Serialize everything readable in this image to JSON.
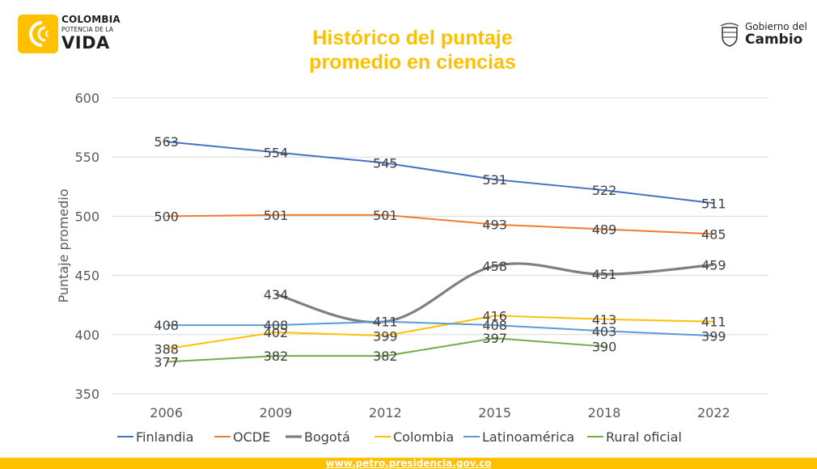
{
  "header": {
    "logo_left": {
      "line1": "COLOMBIA",
      "line2": "POTENCIA DE LA",
      "line3": "VIDA"
    },
    "logo_right": {
      "line1": "Gobierno del",
      "line2": "Cambio"
    }
  },
  "footer": {
    "url": "www.petro.presidencia.gov.co"
  },
  "colors": {
    "title": "#FFC000",
    "footer_bar": "#FFC000"
  },
  "chart_data": {
    "type": "line",
    "title": "Histórico del puntaje promedio en ciencias",
    "title_lines": [
      "Histórico del puntaje",
      "promedio en ciencias"
    ],
    "xlabel": "",
    "ylabel": "Puntaje promedio",
    "categories": [
      "2006",
      "2009",
      "2012",
      "2015",
      "2018",
      "2022"
    ],
    "ylim": [
      350,
      600
    ],
    "yticks": [
      350,
      400,
      450,
      500,
      550,
      600
    ],
    "grid": "horizontal",
    "legend": "bottom",
    "series": [
      {
        "name": "Finlandia",
        "color": "#4472C4",
        "values": [
          563,
          554,
          545,
          531,
          522,
          511
        ],
        "labels": [
          "563",
          "554",
          "545",
          "531",
          "522",
          "511"
        ],
        "smooth": false,
        "thick": false
      },
      {
        "name": "OCDE",
        "color": "#ED7D31",
        "values": [
          500,
          501,
          501,
          493,
          489,
          485
        ],
        "labels": [
          "500",
          "501",
          "501",
          "493",
          "489",
          "485"
        ],
        "smooth": false,
        "thick": false
      },
      {
        "name": "Bogotá",
        "color": "#7F7F7F",
        "values": [
          null,
          434,
          411,
          458,
          451,
          459
        ],
        "labels": [
          "",
          "434",
          "411",
          "458",
          "451",
          "459"
        ],
        "smooth": true,
        "thick": true
      },
      {
        "name": "Colombia",
        "color": "#FFC000",
        "values": [
          388,
          402,
          399,
          416,
          413,
          411
        ],
        "labels": [
          "388",
          "402",
          "399",
          "416",
          "413",
          "411"
        ],
        "smooth": false,
        "thick": false
      },
      {
        "name": "Latinoamérica",
        "color": "#5B9BD5",
        "values": [
          408,
          408,
          411,
          408,
          403,
          399
        ],
        "labels": [
          "408",
          "408",
          "",
          "408",
          "403",
          "399"
        ],
        "smooth": false,
        "thick": false
      },
      {
        "name": "Rural oficial",
        "color": "#70AD47",
        "values": [
          377,
          382,
          382,
          397,
          390,
          null
        ],
        "labels": [
          "377",
          "382",
          "382",
          "397",
          "390",
          ""
        ],
        "smooth": false,
        "thick": false
      }
    ]
  }
}
